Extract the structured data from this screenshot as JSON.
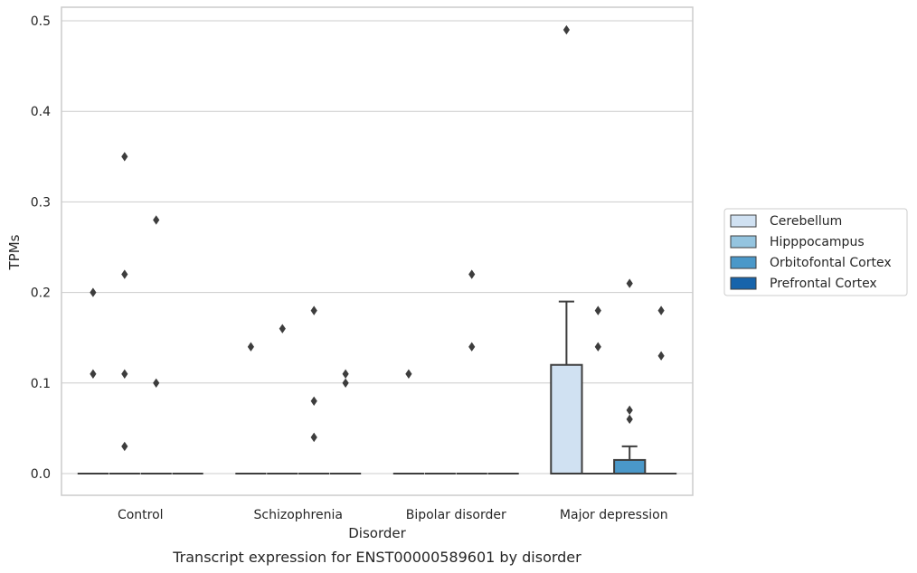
{
  "chart_data": {
    "type": "box",
    "title": "",
    "caption": "Transcript expression for ENST00000589601 by disorder",
    "xlabel": "Disorder",
    "ylabel": "TPMs",
    "ylim": [
      -0.024,
      0.515
    ],
    "yticks": [
      0.0,
      0.1,
      0.2,
      0.3,
      0.4,
      0.5
    ],
    "ytick_labels": [
      "0.0",
      "0.1",
      "0.2",
      "0.3",
      "0.4",
      "0.5"
    ],
    "grid": "horizontal",
    "legend_position": "right",
    "categories": [
      "Control",
      "Schizophrenia",
      "Bipolar disorder",
      "Major depression"
    ],
    "series": [
      {
        "name": "Cerebellum",
        "color": "#d0e1f2",
        "boxes": [
          {
            "q1": 0,
            "median": 0,
            "q3": 0,
            "whisker_low": 0,
            "whisker_high": 0,
            "outliers": [
              0.2,
              0.11
            ]
          },
          {
            "q1": 0,
            "median": 0,
            "q3": 0,
            "whisker_low": 0,
            "whisker_high": 0,
            "outliers": [
              0.14
            ]
          },
          {
            "q1": 0,
            "median": 0,
            "q3": 0,
            "whisker_low": 0,
            "whisker_high": 0,
            "outliers": [
              0.11
            ]
          },
          {
            "q1": 0,
            "median": 0,
            "q3": 0.12,
            "whisker_low": 0,
            "whisker_high": 0.19,
            "outliers": [
              0.49
            ]
          }
        ]
      },
      {
        "name": "Hipppocampus",
        "color": "#94c4df",
        "boxes": [
          {
            "q1": 0,
            "median": 0,
            "q3": 0,
            "whisker_low": 0,
            "whisker_high": 0,
            "outliers": [
              0.22,
              0.35,
              0.11,
              0.03
            ]
          },
          {
            "q1": 0,
            "median": 0,
            "q3": 0,
            "whisker_low": 0,
            "whisker_high": 0,
            "outliers": [
              0.16
            ]
          },
          {
            "q1": 0,
            "median": 0,
            "q3": 0,
            "whisker_low": 0,
            "whisker_high": 0,
            "outliers": []
          },
          {
            "q1": 0,
            "median": 0,
            "q3": 0,
            "whisker_low": 0,
            "whisker_high": 0,
            "outliers": [
              0.18,
              0.14
            ]
          }
        ]
      },
      {
        "name": "Orbitofontal Cortex",
        "color": "#4a98c9",
        "boxes": [
          {
            "q1": 0,
            "median": 0,
            "q3": 0,
            "whisker_low": 0,
            "whisker_high": 0,
            "outliers": [
              0.28,
              0.1
            ]
          },
          {
            "q1": 0,
            "median": 0,
            "q3": 0,
            "whisker_low": 0,
            "whisker_high": 0,
            "outliers": [
              0.18,
              0.08,
              0.04
            ]
          },
          {
            "q1": 0,
            "median": 0,
            "q3": 0,
            "whisker_low": 0,
            "whisker_high": 0,
            "outliers": [
              0.22,
              0.14
            ]
          },
          {
            "q1": 0,
            "median": 0,
            "q3": 0.015,
            "whisker_low": 0,
            "whisker_high": 0.03,
            "outliers": [
              0.21,
              0.07,
              0.06
            ]
          }
        ]
      },
      {
        "name": "Prefrontal Cortex",
        "color": "#1764ab",
        "boxes": [
          {
            "q1": 0,
            "median": 0,
            "q3": 0,
            "whisker_low": 0,
            "whisker_high": 0,
            "outliers": []
          },
          {
            "q1": 0,
            "median": 0,
            "q3": 0,
            "whisker_low": 0,
            "whisker_high": 0,
            "outliers": [
              0.11,
              0.1
            ]
          },
          {
            "q1": 0,
            "median": 0,
            "q3": 0,
            "whisker_low": 0,
            "whisker_high": 0,
            "outliers": []
          },
          {
            "q1": 0,
            "median": 0,
            "q3": 0,
            "whisker_low": 0,
            "whisker_high": 0,
            "outliers": [
              0.18,
              0.13
            ]
          }
        ]
      }
    ]
  }
}
